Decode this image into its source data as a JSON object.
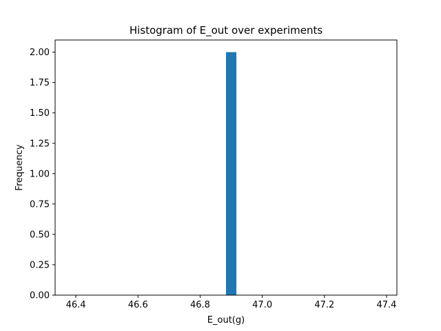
{
  "chart_data": {
    "type": "bar",
    "title": "Histogram of E_out over experiments",
    "xlabel": "E_out(g)",
    "ylabel": "Frequency",
    "bins": [
      {
        "x0": 46.8833,
        "x1": 46.9167,
        "count": 2
      }
    ],
    "xlim": [
      46.3333,
      47.4333
    ],
    "ylim": [
      0,
      2.1
    ],
    "xticks": [
      46.4,
      46.6,
      46.8,
      47.0,
      47.2,
      47.4
    ],
    "xtick_labels": [
      "46.4",
      "46.6",
      "46.8",
      "47.0",
      "47.2",
      "47.4"
    ],
    "yticks": [
      0,
      0.25,
      0.5,
      0.75,
      1.0,
      1.25,
      1.5,
      1.75,
      2.0
    ],
    "ytick_labels": [
      "0.00",
      "0.25",
      "0.50",
      "0.75",
      "1.00",
      "1.25",
      "1.50",
      "1.75",
      "2.00"
    ],
    "grid": false,
    "bar_color": "#1f77b4"
  }
}
